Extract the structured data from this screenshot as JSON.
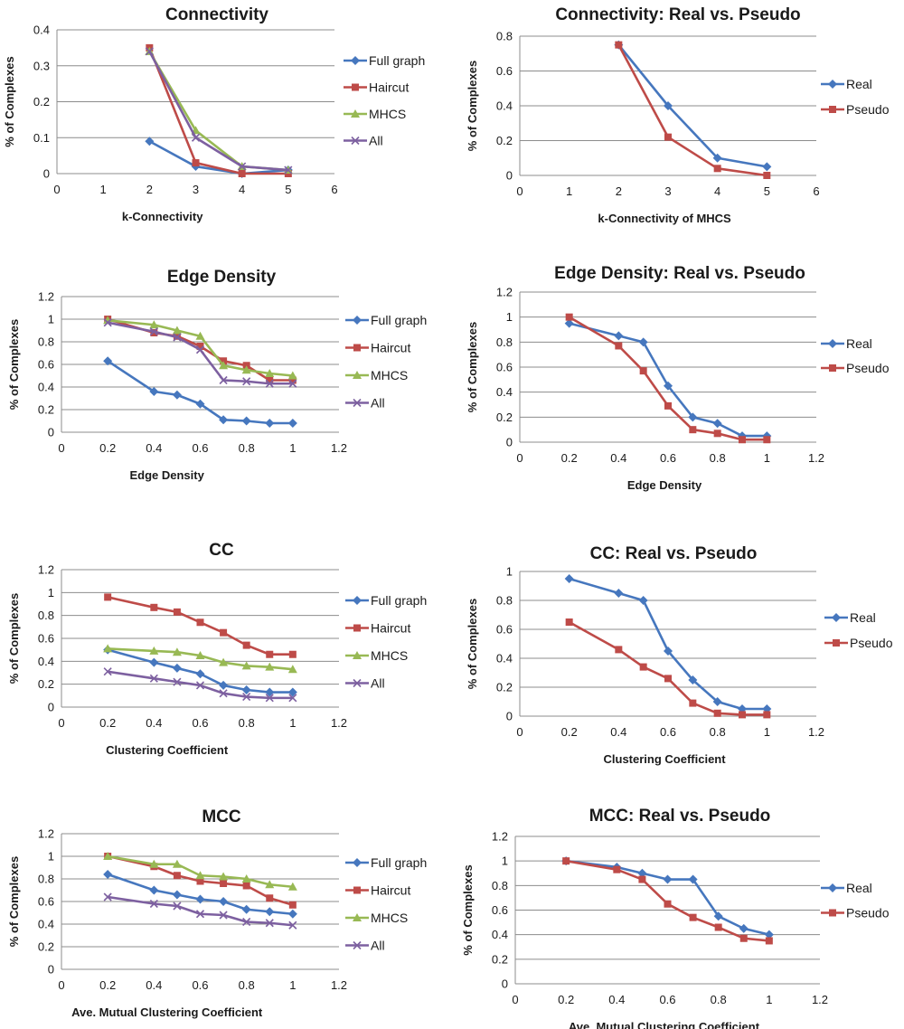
{
  "colors": {
    "full_graph": "#4677be",
    "haircut": "#be4b48",
    "mhcs": "#98b954",
    "all": "#7d60a0",
    "real": "#4677be",
    "pseudo": "#be4b48"
  },
  "chart_data": [
    {
      "type": "line",
      "title": "Connectivity",
      "xlabel": "k-Connectivity",
      "ylabel": "% of Complexes",
      "xlim": [
        0,
        6
      ],
      "xticks": [
        0,
        1,
        2,
        3,
        4,
        5,
        6
      ],
      "xtick_labels": [
        "0",
        "1",
        "2",
        "3",
        "4",
        "5",
        "6"
      ],
      "ylim": [
        0,
        0.4
      ],
      "yticks": [
        0,
        0.1,
        0.2,
        0.3,
        0.4
      ],
      "ytick_labels": [
        "0",
        "0.1",
        "0.2",
        "0.3",
        "0.4"
      ],
      "legend": "right",
      "series": [
        {
          "name": "Full graph",
          "color": "#4677be",
          "marker": "diamond",
          "x": [
            2,
            3,
            4,
            5
          ],
          "values": [
            0.09,
            0.02,
            0.0,
            0.01
          ]
        },
        {
          "name": "Haircut",
          "color": "#be4b48",
          "marker": "square",
          "x": [
            2,
            3,
            4,
            5
          ],
          "values": [
            0.35,
            0.03,
            0.0,
            0.0
          ]
        },
        {
          "name": "MHCS",
          "color": "#98b954",
          "marker": "triangle",
          "x": [
            2,
            3,
            4,
            5
          ],
          "values": [
            0.34,
            0.12,
            0.02,
            0.01
          ]
        },
        {
          "name": "All",
          "color": "#7d60a0",
          "marker": "x",
          "x": [
            2,
            3,
            4,
            5
          ],
          "values": [
            0.34,
            0.1,
            0.02,
            0.01
          ]
        }
      ]
    },
    {
      "type": "line",
      "title": "Connectivity: Real vs. Pseudo",
      "xlabel": "k-Connectivity of MHCS",
      "ylabel": "% of Complexes",
      "xlim": [
        0,
        6
      ],
      "xticks": [
        0,
        1,
        2,
        3,
        4,
        5,
        6
      ],
      "xtick_labels": [
        "0",
        "1",
        "2",
        "3",
        "4",
        "5",
        "6"
      ],
      "ylim": [
        0,
        0.8
      ],
      "yticks": [
        0,
        0.2,
        0.4,
        0.6,
        0.8
      ],
      "ytick_labels": [
        "0",
        "0.2",
        "0.4",
        "0.6",
        "0.8"
      ],
      "legend": "right",
      "series": [
        {
          "name": "Real",
          "color": "#4677be",
          "marker": "diamond",
          "x": [
            2,
            3,
            4,
            5
          ],
          "values": [
            0.75,
            0.4,
            0.1,
            0.05
          ]
        },
        {
          "name": "Pseudo",
          "color": "#be4b48",
          "marker": "square",
          "x": [
            2,
            3,
            4,
            5
          ],
          "values": [
            0.75,
            0.22,
            0.04,
            0.0
          ]
        }
      ]
    },
    {
      "type": "line",
      "title": "Edge Density",
      "xlabel": "Edge Density",
      "ylabel": "% of Complexes",
      "xlim": [
        0,
        1.2
      ],
      "xticks": [
        0,
        0.2,
        0.4,
        0.6,
        0.8,
        1,
        1.2
      ],
      "xtick_labels": [
        "0",
        "0.2",
        "0.4",
        "0.6",
        "0.8",
        "1",
        "1.2"
      ],
      "ylim": [
        0,
        1.2
      ],
      "yticks": [
        0,
        0.2,
        0.4,
        0.6,
        0.8,
        1,
        1.2
      ],
      "ytick_labels": [
        "0",
        "0.2",
        "0.4",
        "0.6",
        "0.8",
        "1",
        "1.2"
      ],
      "legend": "right",
      "series": [
        {
          "name": "Full graph",
          "color": "#4677be",
          "marker": "diamond",
          "x": [
            0.2,
            0.4,
            0.5,
            0.6,
            0.7,
            0.8,
            0.9,
            1.0
          ],
          "values": [
            0.63,
            0.36,
            0.33,
            0.25,
            0.11,
            0.1,
            0.08,
            0.08
          ]
        },
        {
          "name": "Haircut",
          "color": "#be4b48",
          "marker": "square",
          "x": [
            0.2,
            0.4,
            0.5,
            0.6,
            0.7,
            0.8,
            0.9,
            1.0
          ],
          "values": [
            1.0,
            0.88,
            0.85,
            0.76,
            0.63,
            0.59,
            0.46,
            0.46
          ]
        },
        {
          "name": "MHCS",
          "color": "#98b954",
          "marker": "triangle",
          "x": [
            0.2,
            0.4,
            0.5,
            0.6,
            0.7,
            0.8,
            0.9,
            1.0
          ],
          "values": [
            0.99,
            0.95,
            0.9,
            0.85,
            0.59,
            0.55,
            0.52,
            0.5
          ]
        },
        {
          "name": "All",
          "color": "#7d60a0",
          "marker": "x",
          "x": [
            0.2,
            0.4,
            0.5,
            0.6,
            0.7,
            0.8,
            0.9,
            1.0
          ],
          "values": [
            0.97,
            0.89,
            0.84,
            0.73,
            0.46,
            0.45,
            0.43,
            0.43
          ]
        }
      ]
    },
    {
      "type": "line",
      "title": "Edge Density: Real vs. Pseudo",
      "xlabel": "Edge Density",
      "ylabel": "% of Complexes",
      "xlim": [
        0,
        1.2
      ],
      "xticks": [
        0,
        0.2,
        0.4,
        0.6,
        0.8,
        1,
        1.2
      ],
      "xtick_labels": [
        "0",
        "0.2",
        "0.4",
        "0.6",
        "0.8",
        "1",
        "1.2"
      ],
      "ylim": [
        0,
        1.2
      ],
      "yticks": [
        0,
        0.2,
        0.4,
        0.6,
        0.8,
        1,
        1.2
      ],
      "ytick_labels": [
        "0",
        "0.2",
        "0.4",
        "0.6",
        "0.8",
        "1",
        "1.2"
      ],
      "legend": "right",
      "series": [
        {
          "name": "Real",
          "color": "#4677be",
          "marker": "diamond",
          "x": [
            0.2,
            0.4,
            0.5,
            0.6,
            0.7,
            0.8,
            0.9,
            1.0
          ],
          "values": [
            0.95,
            0.85,
            0.8,
            0.45,
            0.2,
            0.15,
            0.05,
            0.05
          ]
        },
        {
          "name": "Pseudo",
          "color": "#be4b48",
          "marker": "square",
          "x": [
            0.2,
            0.4,
            0.5,
            0.6,
            0.7,
            0.8,
            0.9,
            1.0
          ],
          "values": [
            1.0,
            0.77,
            0.57,
            0.29,
            0.1,
            0.07,
            0.02,
            0.02
          ]
        }
      ]
    },
    {
      "type": "line",
      "title": "CC",
      "xlabel": "Clustering Coefficient",
      "ylabel": "% of Complexes",
      "xlim": [
        0,
        1.2
      ],
      "xticks": [
        0,
        0.2,
        0.4,
        0.6,
        0.8,
        1,
        1.2
      ],
      "xtick_labels": [
        "0",
        "0.2",
        "0.4",
        "0.6",
        "0.8",
        "1",
        "1.2"
      ],
      "ylim": [
        0,
        1.2
      ],
      "yticks": [
        0,
        0.2,
        0.4,
        0.6,
        0.8,
        1,
        1.2
      ],
      "ytick_labels": [
        "0",
        "0.2",
        "0.4",
        "0.6",
        "0.8",
        "1",
        "1.2"
      ],
      "legend": "right",
      "series": [
        {
          "name": "Full graph",
          "color": "#4677be",
          "marker": "diamond",
          "x": [
            0.2,
            0.4,
            0.5,
            0.6,
            0.7,
            0.8,
            0.9,
            1.0
          ],
          "values": [
            0.5,
            0.39,
            0.34,
            0.29,
            0.19,
            0.15,
            0.13,
            0.13
          ]
        },
        {
          "name": "Haircut",
          "color": "#be4b48",
          "marker": "square",
          "x": [
            0.2,
            0.4,
            0.5,
            0.6,
            0.7,
            0.8,
            0.9,
            1.0
          ],
          "values": [
            0.96,
            0.87,
            0.83,
            0.74,
            0.65,
            0.54,
            0.46,
            0.46
          ]
        },
        {
          "name": "MHCS",
          "color": "#98b954",
          "marker": "triangle",
          "x": [
            0.2,
            0.4,
            0.5,
            0.6,
            0.7,
            0.8,
            0.9,
            1.0
          ],
          "values": [
            0.51,
            0.49,
            0.48,
            0.45,
            0.39,
            0.36,
            0.35,
            0.33
          ]
        },
        {
          "name": "All",
          "color": "#7d60a0",
          "marker": "x",
          "x": [
            0.2,
            0.4,
            0.5,
            0.6,
            0.7,
            0.8,
            0.9,
            1.0
          ],
          "values": [
            0.31,
            0.25,
            0.22,
            0.19,
            0.12,
            0.09,
            0.08,
            0.08
          ]
        }
      ]
    },
    {
      "type": "line",
      "title": "CC: Real vs. Pseudo",
      "xlabel": "Clustering Coefficient",
      "ylabel": "% of Complexes",
      "xlim": [
        0,
        1.2
      ],
      "xticks": [
        0,
        0.2,
        0.4,
        0.6,
        0.8,
        1,
        1.2
      ],
      "xtick_labels": [
        "0",
        "0.2",
        "0.4",
        "0.6",
        "0.8",
        "1",
        "1.2"
      ],
      "ylim": [
        0,
        1
      ],
      "yticks": [
        0,
        0.2,
        0.4,
        0.6,
        0.8,
        1
      ],
      "ytick_labels": [
        "0",
        "0.2",
        "0.4",
        "0.6",
        "0.8",
        "1"
      ],
      "legend": "right",
      "series": [
        {
          "name": "Real",
          "color": "#4677be",
          "marker": "diamond",
          "x": [
            0.2,
            0.4,
            0.5,
            0.6,
            0.7,
            0.8,
            0.9,
            1.0
          ],
          "values": [
            0.95,
            0.85,
            0.8,
            0.45,
            0.25,
            0.1,
            0.05,
            0.05
          ]
        },
        {
          "name": "Pseudo",
          "color": "#be4b48",
          "marker": "square",
          "x": [
            0.2,
            0.4,
            0.5,
            0.6,
            0.7,
            0.8,
            0.9,
            1.0
          ],
          "values": [
            0.65,
            0.46,
            0.34,
            0.26,
            0.09,
            0.02,
            0.01,
            0.01
          ]
        }
      ]
    },
    {
      "type": "line",
      "title": "MCC",
      "xlabel": "Ave. Mutual Clustering Coefficient",
      "ylabel": "% of Complexes",
      "xlim": [
        0,
        1.2
      ],
      "xticks": [
        0,
        0.2,
        0.4,
        0.6,
        0.8,
        1,
        1.2
      ],
      "xtick_labels": [
        "0",
        "0.2",
        "0.4",
        "0.6",
        "0.8",
        "1",
        "1.2"
      ],
      "ylim": [
        0,
        1.2
      ],
      "yticks": [
        0,
        0.2,
        0.4,
        0.6,
        0.8,
        1,
        1.2
      ],
      "ytick_labels": [
        "0",
        "0.2",
        "0.4",
        "0.6",
        "0.8",
        "1",
        "1.2"
      ],
      "legend": "right",
      "series": [
        {
          "name": "Full graph",
          "color": "#4677be",
          "marker": "diamond",
          "x": [
            0.2,
            0.4,
            0.5,
            0.6,
            0.7,
            0.8,
            0.9,
            1.0
          ],
          "values": [
            0.84,
            0.7,
            0.66,
            0.62,
            0.6,
            0.53,
            0.51,
            0.49
          ]
        },
        {
          "name": "Haircut",
          "color": "#be4b48",
          "marker": "square",
          "x": [
            0.2,
            0.4,
            0.5,
            0.6,
            0.7,
            0.8,
            0.9,
            1.0
          ],
          "values": [
            1.0,
            0.91,
            0.83,
            0.78,
            0.76,
            0.74,
            0.63,
            0.57
          ]
        },
        {
          "name": "MHCS",
          "color": "#98b954",
          "marker": "triangle",
          "x": [
            0.2,
            0.4,
            0.5,
            0.6,
            0.7,
            0.8,
            0.9,
            1.0
          ],
          "values": [
            1.0,
            0.93,
            0.93,
            0.83,
            0.82,
            0.8,
            0.75,
            0.73
          ]
        },
        {
          "name": "All",
          "color": "#7d60a0",
          "marker": "x",
          "x": [
            0.2,
            0.4,
            0.5,
            0.6,
            0.7,
            0.8,
            0.9,
            1.0
          ],
          "values": [
            0.64,
            0.58,
            0.56,
            0.49,
            0.48,
            0.42,
            0.41,
            0.39
          ]
        }
      ]
    },
    {
      "type": "line",
      "title": "MCC: Real vs. Pseudo",
      "xlabel": "Ave. Mutual Clustering Coefficient",
      "ylabel": "% of Complexes",
      "xlim": [
        0,
        1.2
      ],
      "xticks": [
        0,
        0.2,
        0.4,
        0.6,
        0.8,
        1,
        1.2
      ],
      "xtick_labels": [
        "0",
        "0.2",
        "0.4",
        "0.6",
        "0.8",
        "1",
        "1.2"
      ],
      "ylim": [
        0,
        1.2
      ],
      "yticks": [
        0,
        0.2,
        0.4,
        0.6,
        0.8,
        1,
        1.2
      ],
      "ytick_labels": [
        "0",
        "0.2",
        "0.4",
        "0.6",
        "0.8",
        "1",
        "1.2"
      ],
      "legend": "right",
      "series": [
        {
          "name": "Real",
          "color": "#4677be",
          "marker": "diamond",
          "x": [
            0.2,
            0.4,
            0.5,
            0.6,
            0.7,
            0.8,
            0.9,
            1.0
          ],
          "values": [
            1.0,
            0.95,
            0.9,
            0.85,
            0.85,
            0.55,
            0.45,
            0.4
          ]
        },
        {
          "name": "Pseudo",
          "color": "#be4b48",
          "marker": "square",
          "x": [
            0.2,
            0.4,
            0.5,
            0.6,
            0.7,
            0.8,
            0.9,
            1.0
          ],
          "values": [
            1.0,
            0.93,
            0.85,
            0.65,
            0.54,
            0.46,
            0.37,
            0.35
          ]
        }
      ]
    }
  ]
}
